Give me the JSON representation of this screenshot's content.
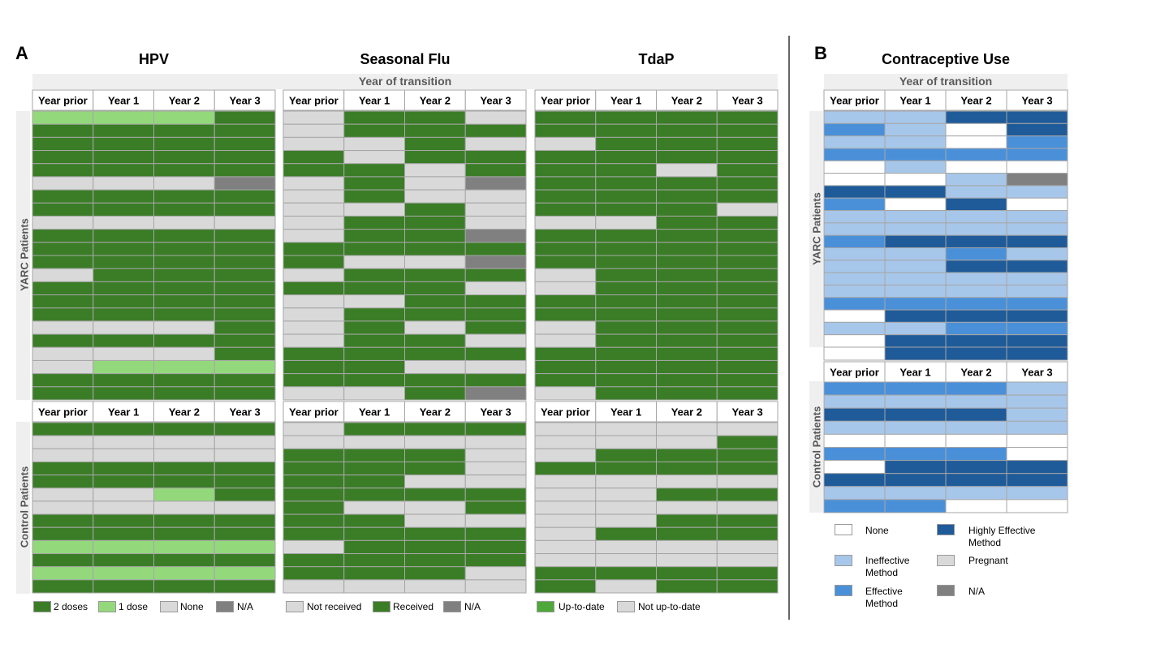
{
  "panel_letters": {
    "a": "A",
    "b": "B"
  },
  "band_label": "Year of transition",
  "column_headers": [
    "Year prior",
    "Year 1",
    "Year 2",
    "Year 3"
  ],
  "group_labels": {
    "yarc": "YARC Patients",
    "control": "Control Patients"
  },
  "colors": {
    "G": "#3a7d26",
    "L": "#93d97c",
    "X": "#d9d9d9",
    "N": "#808080",
    "W": "#ffffff",
    "I": "#a7c7ea",
    "E": "#4a90d9",
    "H": "#1f5b99",
    "U": "#4fa83a"
  },
  "chart_data": [
    {
      "type": "heatmap",
      "title": "HPV",
      "categories": [
        "Year prior",
        "Year 1",
        "Year 2",
        "Year 3"
      ],
      "legend": [
        {
          "key": "G",
          "label": "2 doses"
        },
        {
          "key": "L",
          "label": "1 dose"
        },
        {
          "key": "X",
          "label": "None"
        },
        {
          "key": "N",
          "label": "N/A"
        }
      ],
      "yarc": [
        "LLLG",
        "GGGG",
        "GGGG",
        "GGGG",
        "GGGG",
        "XXXN",
        "GGGG",
        "GGGG",
        "XXXX",
        "GGGG",
        "GGGG",
        "GGGG",
        "XGGG",
        "GGGG",
        "GGGG",
        "GGGG",
        "XXXG",
        "GGGG",
        "XXXG",
        "XLLL",
        "GGGG",
        "GGGG"
      ],
      "control": [
        "GGGG",
        "XXXX",
        "XXXX",
        "GGGG",
        "GGGG",
        "XXLG",
        "XXXX",
        "GGGG",
        "GGGG",
        "LLLL",
        "GGGG",
        "LLLL",
        "GGGG"
      ]
    },
    {
      "type": "heatmap",
      "title": "Seasonal Flu",
      "categories": [
        "Year prior",
        "Year 1",
        "Year 2",
        "Year 3"
      ],
      "legend": [
        {
          "key": "X",
          "label": "Not received"
        },
        {
          "key": "G",
          "label": "Received"
        },
        {
          "key": "N",
          "label": "N/A"
        }
      ],
      "yarc": [
        "XGGX",
        "XGGG",
        "XXGX",
        "GXGG",
        "GGXG",
        "XGXN",
        "XGXX",
        "XXGX",
        "XGGX",
        "XGGN",
        "GGGG",
        "GXXN",
        "XGGG",
        "GGGX",
        "XXGG",
        "XGGG",
        "XGXG",
        "XGGX",
        "GGGG",
        "GGXX",
        "GGGG",
        "XXGN"
      ],
      "control": [
        "XGGG",
        "XXXX",
        "GGGX",
        "GGGX",
        "GGXX",
        "GGGG",
        "GXXG",
        "GGXX",
        "GGGG",
        "XGGG",
        "GGGG",
        "GGGX",
        "XXXX"
      ]
    },
    {
      "type": "heatmap",
      "title": "TdaP",
      "categories": [
        "Year prior",
        "Year 1",
        "Year 2",
        "Year 3"
      ],
      "legend": [
        {
          "key": "U",
          "label": "Up-to-date"
        },
        {
          "key": "X",
          "label": "Not up-to-date"
        }
      ],
      "yarc": [
        "GGGG",
        "GGGG",
        "XGGG",
        "GGGG",
        "GGXG",
        "GGGG",
        "GGGG",
        "GGGX",
        "XXGG",
        "GGGG",
        "GGGG",
        "GGGG",
        "XGGG",
        "XGGG",
        "GGGG",
        "GGGG",
        "XGGG",
        "XGGG",
        "GGGG",
        "GGGG",
        "GGGG",
        "XGGG"
      ],
      "control": [
        "XXXX",
        "XXXG",
        "XGGG",
        "GGGG",
        "XXXX",
        "XXGG",
        "XXXX",
        "XXGG",
        "XGGG",
        "XXXX",
        "XXXX",
        "GGGG",
        "GXGG"
      ]
    },
    {
      "type": "heatmap",
      "title": "Contraceptive Use",
      "categories": [
        "Year prior",
        "Year 1",
        "Year 2",
        "Year 3"
      ],
      "legend": [
        {
          "key": "W",
          "label": "None"
        },
        {
          "key": "H",
          "label": "Highly Effective Method"
        },
        {
          "key": "I",
          "label": "Ineffective Method"
        },
        {
          "key": "X",
          "label": "Pregnant"
        },
        {
          "key": "E",
          "label": "Effective Method"
        },
        {
          "key": "N",
          "label": "N/A"
        }
      ],
      "yarc": [
        "IIHH",
        "EIWH",
        "IIWE",
        "EEEE",
        "WIWW",
        "WWIN",
        "HHII",
        "EWHW",
        "IIII",
        "IIII",
        "EHHH",
        "IIEI",
        "IIHH",
        "IIII",
        "IIII",
        "EEEE",
        "WHHH",
        "IIEE",
        "WHHH"
      ],
      "control": [
        "EEEI",
        "IIII",
        "HHHI",
        "IIII",
        "WWWW",
        "EEEW",
        "WHHH",
        "HHHH",
        "IIII",
        "EEWW"
      ]
    }
  ]
}
